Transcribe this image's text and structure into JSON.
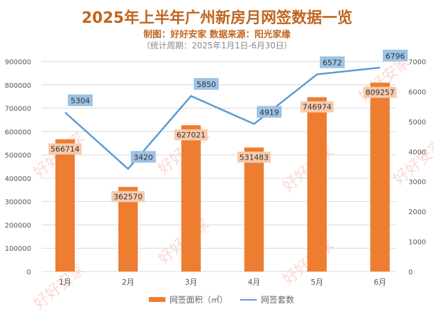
{
  "chart_data": {
    "type": "bar+line",
    "title": "2025年上半年广州新房月网签数据一览",
    "subtitle": "制图：好好安家   数据来源：阳光家缘",
    "note": "（统计周期：2025年1月1日-6月30日）",
    "categories": [
      "1月",
      "2月",
      "3月",
      "4月",
      "5月",
      "6月"
    ],
    "series": [
      {
        "name": "网签面积（㎡）",
        "type": "bar",
        "axis": "left",
        "color": "#ed7d31",
        "label_bg": "#f8cbad",
        "values": [
          566714,
          362570,
          627021,
          531483,
          746974,
          809257
        ]
      },
      {
        "name": "网签套数",
        "type": "line",
        "axis": "right",
        "color": "#5b9bd5",
        "label_bg": "#9dc3e6",
        "values": [
          5304,
          3420,
          5850,
          4919,
          6572,
          6796
        ]
      }
    ],
    "left_axis": {
      "range": [
        0,
        900000
      ],
      "ticks": [
        "0",
        "100000",
        "200000",
        "300000",
        "400000",
        "500000",
        "600000",
        "700000",
        "800000",
        "900000"
      ]
    },
    "right_axis": {
      "range": [
        0,
        7000
      ],
      "ticks": [
        "0",
        "1000",
        "2000",
        "3000",
        "4000",
        "5000",
        "6000",
        "7000"
      ]
    },
    "grid": true,
    "legend": "bottom",
    "watermark": "好好安家"
  }
}
